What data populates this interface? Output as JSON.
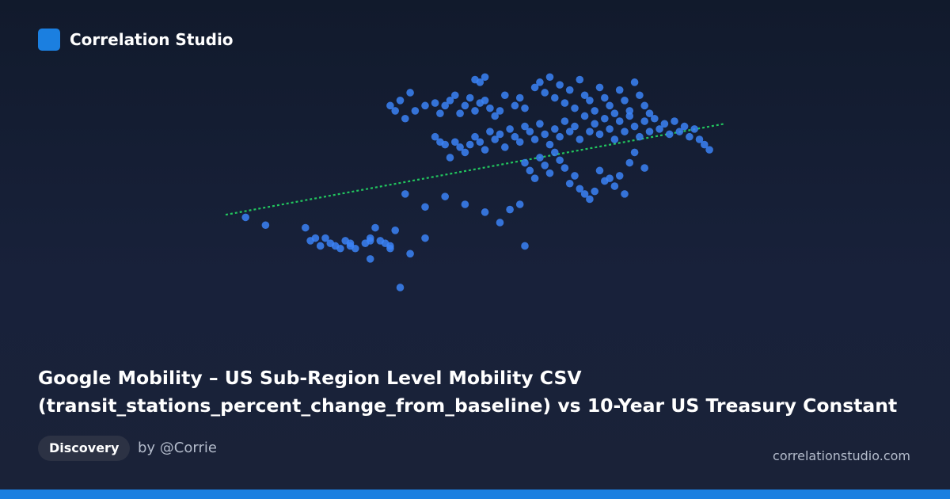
{
  "brand": {
    "name": "Correlation Studio",
    "logo_color": "#1b7fe0"
  },
  "title_lines": [
    "Google Mobility – US Sub-Region Level Mobility CSV",
    "(transit_stations_percent_change_from_baseline) vs 10-Year US Treasury Constant"
  ],
  "tag": "Discovery",
  "byline": "by @Corrie",
  "footer_domain": "correlationstudio.com",
  "colors": {
    "accent": "#1b7fe0",
    "point": "#3b82f6",
    "trendline": "#22c55e",
    "background_top": "#111a2c",
    "background_bottom": "#1a2238"
  },
  "chart_data": {
    "type": "scatter",
    "axes_visible": false,
    "grid": false,
    "legend": "none",
    "xlim": [
      0,
      100
    ],
    "ylim": [
      0,
      100
    ],
    "trendline": {
      "style": "dotted",
      "color": "#22c55e",
      "x": [
        0,
        100
      ],
      "y": [
        46,
        81
      ]
    },
    "points": [
      [
        4,
        45
      ],
      [
        8,
        42
      ],
      [
        16,
        41
      ],
      [
        17,
        36
      ],
      [
        18,
        37
      ],
      [
        19,
        34
      ],
      [
        20,
        37
      ],
      [
        21,
        35
      ],
      [
        22,
        34
      ],
      [
        23,
        33
      ],
      [
        24,
        36
      ],
      [
        25,
        35
      ],
      [
        25,
        34
      ],
      [
        26,
        33
      ],
      [
        28,
        35
      ],
      [
        29,
        37
      ],
      [
        29,
        36
      ],
      [
        29,
        29
      ],
      [
        31,
        36
      ],
      [
        32,
        35
      ],
      [
        33,
        34
      ],
      [
        34,
        40
      ],
      [
        33,
        33
      ],
      [
        30,
        41
      ],
      [
        34,
        86
      ],
      [
        33,
        88
      ],
      [
        35,
        90
      ],
      [
        36,
        83
      ],
      [
        37,
        93
      ],
      [
        38,
        86
      ],
      [
        40,
        88
      ],
      [
        42,
        89
      ],
      [
        43,
        85
      ],
      [
        44,
        88
      ],
      [
        45,
        90
      ],
      [
        46,
        92
      ],
      [
        47,
        85
      ],
      [
        48,
        88
      ],
      [
        49,
        91
      ],
      [
        50,
        86
      ],
      [
        51,
        89
      ],
      [
        52,
        90
      ],
      [
        53,
        87
      ],
      [
        54,
        84
      ],
      [
        55,
        86
      ],
      [
        50,
        98
      ],
      [
        51,
        97
      ],
      [
        52,
        99
      ],
      [
        56,
        92
      ],
      [
        58,
        88
      ],
      [
        59,
        91
      ],
      [
        60,
        87
      ],
      [
        42,
        76
      ],
      [
        43,
        74
      ],
      [
        44,
        73
      ],
      [
        45,
        68
      ],
      [
        46,
        74
      ],
      [
        47,
        72
      ],
      [
        48,
        70
      ],
      [
        49,
        73
      ],
      [
        50,
        76
      ],
      [
        51,
        74
      ],
      [
        52,
        71
      ],
      [
        53,
        78
      ],
      [
        54,
        75
      ],
      [
        55,
        77
      ],
      [
        56,
        72
      ],
      [
        57,
        79
      ],
      [
        58,
        76
      ],
      [
        59,
        74
      ],
      [
        60,
        80
      ],
      [
        61,
        78
      ],
      [
        62,
        75
      ],
      [
        63,
        81
      ],
      [
        64,
        77
      ],
      [
        65,
        73
      ],
      [
        66,
        79
      ],
      [
        67,
        76
      ],
      [
        68,
        82
      ],
      [
        69,
        78
      ],
      [
        70,
        80
      ],
      [
        71,
        75
      ],
      [
        72,
        84
      ],
      [
        73,
        78
      ],
      [
        74,
        81
      ],
      [
        75,
        77
      ],
      [
        76,
        83
      ],
      [
        77,
        79
      ],
      [
        78,
        75
      ],
      [
        79,
        82
      ],
      [
        80,
        78
      ],
      [
        81,
        84
      ],
      [
        82,
        80
      ],
      [
        83,
        76
      ],
      [
        84,
        82
      ],
      [
        85,
        78
      ],
      [
        86,
        83
      ],
      [
        87,
        79
      ],
      [
        88,
        81
      ],
      [
        89,
        77
      ],
      [
        90,
        82
      ],
      [
        91,
        78
      ],
      [
        92,
        80
      ],
      [
        93,
        76
      ],
      [
        94,
        79
      ],
      [
        95,
        75
      ],
      [
        96,
        73
      ],
      [
        97,
        71
      ],
      [
        62,
        95
      ],
      [
        63,
        97
      ],
      [
        64,
        93
      ],
      [
        65,
        99
      ],
      [
        66,
        91
      ],
      [
        67,
        96
      ],
      [
        68,
        89
      ],
      [
        69,
        94
      ],
      [
        70,
        87
      ],
      [
        71,
        98
      ],
      [
        72,
        92
      ],
      [
        73,
        90
      ],
      [
        74,
        86
      ],
      [
        75,
        95
      ],
      [
        76,
        91
      ],
      [
        77,
        88
      ],
      [
        78,
        85
      ],
      [
        79,
        94
      ],
      [
        80,
        90
      ],
      [
        81,
        86
      ],
      [
        82,
        97
      ],
      [
        83,
        92
      ],
      [
        84,
        88
      ],
      [
        85,
        85
      ],
      [
        60,
        66
      ],
      [
        61,
        63
      ],
      [
        62,
        60
      ],
      [
        63,
        68
      ],
      [
        64,
        65
      ],
      [
        65,
        62
      ],
      [
        66,
        70
      ],
      [
        67,
        67
      ],
      [
        68,
        64
      ],
      [
        69,
        58
      ],
      [
        70,
        61
      ],
      [
        71,
        56
      ],
      [
        72,
        54
      ],
      [
        73,
        52
      ],
      [
        74,
        55
      ],
      [
        75,
        63
      ],
      [
        76,
        59
      ],
      [
        77,
        60
      ],
      [
        78,
        57
      ],
      [
        79,
        61
      ],
      [
        80,
        54
      ],
      [
        81,
        66
      ],
      [
        82,
        70
      ],
      [
        84,
        64
      ],
      [
        36,
        54
      ],
      [
        40,
        49
      ],
      [
        44,
        53
      ],
      [
        48,
        50
      ],
      [
        52,
        47
      ],
      [
        55,
        43
      ],
      [
        57,
        48
      ],
      [
        59,
        50
      ],
      [
        40,
        37
      ],
      [
        37,
        31
      ],
      [
        60,
        34
      ],
      [
        35,
        18
      ]
    ]
  }
}
